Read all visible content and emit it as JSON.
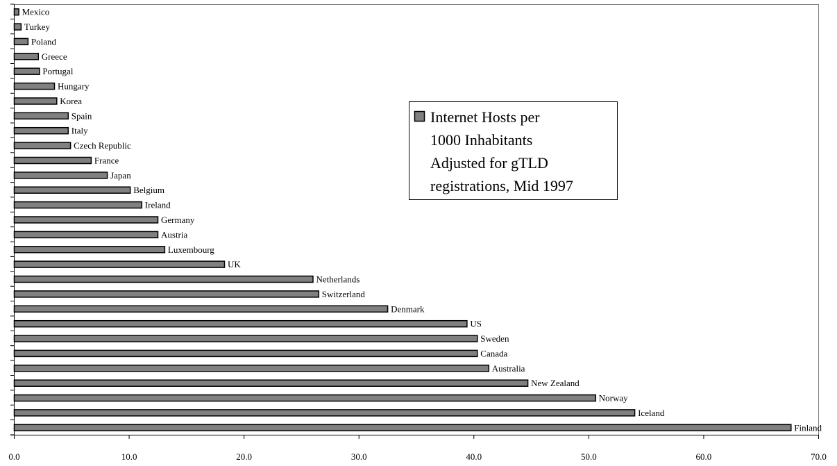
{
  "chart_data": {
    "type": "bar",
    "orientation": "horizontal",
    "bar_color": "#808080",
    "bar_outline": "#000000",
    "legend_position": "center-right",
    "legend_label": "Internet Hosts per 1000 Inhabitants Adjusted for gTLD registrations, Mid 1997",
    "legend_lines": [
      "Internet Hosts per",
      "1000 Inhabitants",
      "Adjusted for gTLD",
      "registrations, Mid 1997"
    ],
    "xlim": [
      0,
      70
    ],
    "x_ticks": [
      "0.0",
      "10.0",
      "20.0",
      "30.0",
      "40.0",
      "50.0",
      "60.0",
      "70.0"
    ],
    "categories": [
      "Mexico",
      "Turkey",
      "Poland",
      "Greece",
      "Portugal",
      "Hungary",
      "Korea",
      "Spain",
      "Italy",
      "Czech Republic",
      "France",
      "Japan",
      "Belgium",
      "Ireland",
      "Germany",
      "Austria",
      "Luxembourg",
      "UK",
      "Netherlands",
      "Switzerland",
      "Denmark",
      "US",
      "Sweden",
      "Canada",
      "Australia",
      "New Zealand",
      "Norway",
      "Iceland",
      "Finland"
    ],
    "values": [
      0.4,
      0.6,
      1.2,
      2.1,
      2.2,
      3.5,
      3.7,
      4.7,
      4.7,
      4.9,
      6.7,
      8.1,
      10.1,
      11.1,
      12.5,
      12.5,
      13.1,
      18.3,
      26.0,
      26.5,
      32.5,
      39.4,
      40.3,
      40.3,
      41.3,
      44.7,
      50.6,
      54.0,
      67.6
    ],
    "grid": false
  }
}
